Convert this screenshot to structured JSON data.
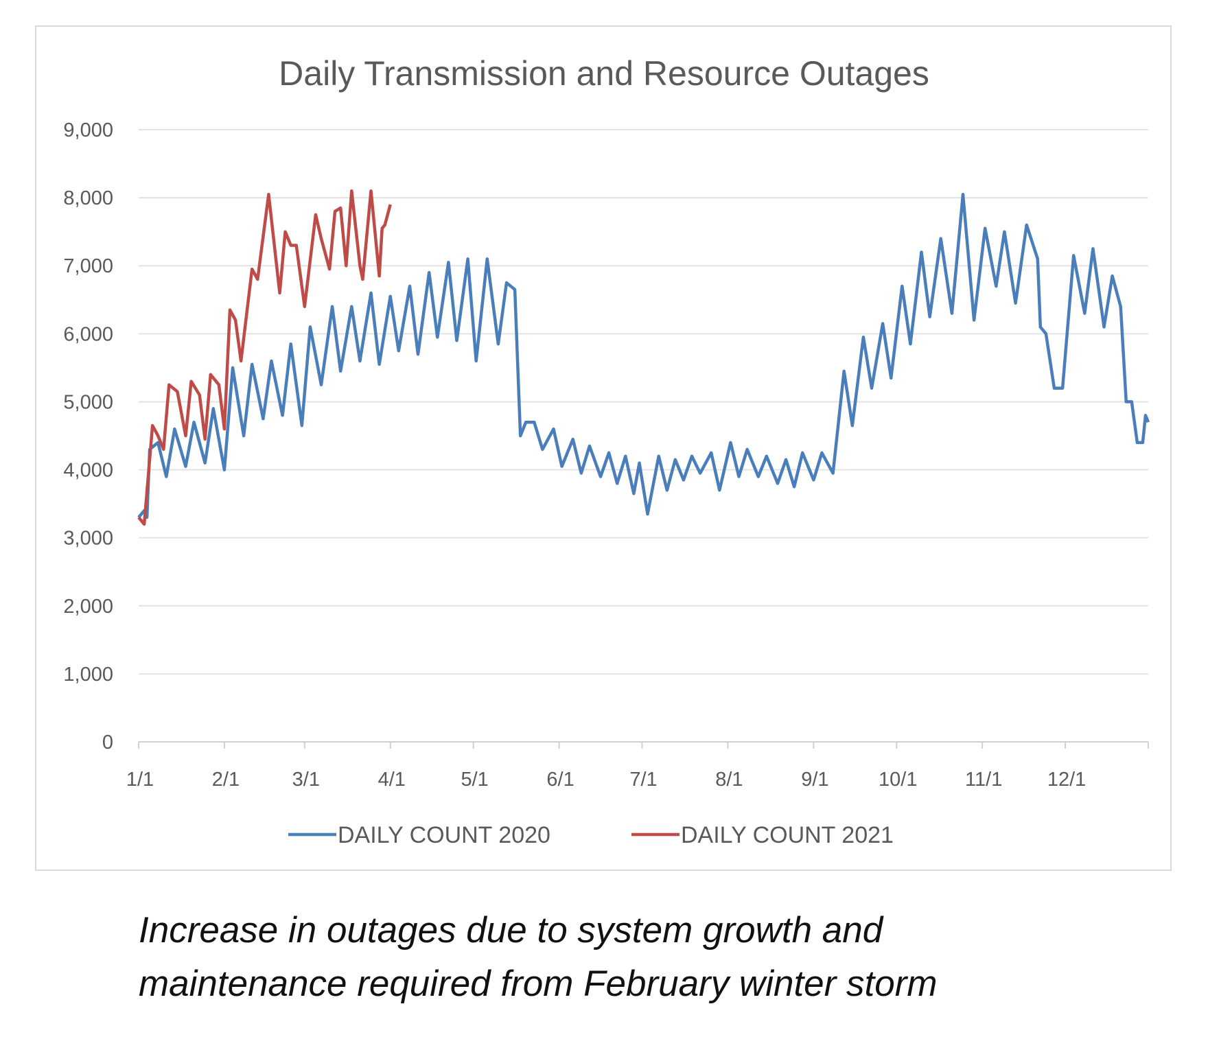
{
  "chart_data": {
    "type": "line",
    "title": "Daily Transmission and Resource Outages",
    "xlabel": "",
    "ylabel": "",
    "ylim": [
      0,
      9000
    ],
    "yticks": [
      "0",
      "1,000",
      "2,000",
      "3,000",
      "4,000",
      "5,000",
      "6,000",
      "7,000",
      "8,000",
      "9,000"
    ],
    "xticks": [
      "1/1",
      "2/1",
      "3/1",
      "4/1",
      "5/1",
      "6/1",
      "7/1",
      "8/1",
      "9/1",
      "10/1",
      "11/1",
      "12/1"
    ],
    "grid": true,
    "legend": "bottom",
    "series": [
      {
        "name": "DAILY COUNT 2020",
        "color": "#4a7ebb",
        "points": [
          [
            "1/1",
            3300
          ],
          [
            "1/3",
            3400
          ],
          [
            "1/4",
            3300
          ],
          [
            "1/5",
            4300
          ],
          [
            "1/8",
            4400
          ],
          [
            "1/11",
            3900
          ],
          [
            "1/14",
            4600
          ],
          [
            "1/18",
            4050
          ],
          [
            "1/21",
            4700
          ],
          [
            "1/25",
            4100
          ],
          [
            "1/28",
            4900
          ],
          [
            "2/1",
            4000
          ],
          [
            "2/4",
            5500
          ],
          [
            "2/8",
            4500
          ],
          [
            "2/11",
            5550
          ],
          [
            "2/15",
            4750
          ],
          [
            "2/18",
            5600
          ],
          [
            "2/22",
            4800
          ],
          [
            "2/25",
            5850
          ],
          [
            "2/29",
            4650
          ],
          [
            "3/3",
            6100
          ],
          [
            "3/7",
            5250
          ],
          [
            "3/11",
            6400
          ],
          [
            "3/14",
            5450
          ],
          [
            "3/18",
            6400
          ],
          [
            "3/21",
            5600
          ],
          [
            "3/25",
            6600
          ],
          [
            "3/28",
            5550
          ],
          [
            "4/1",
            6550
          ],
          [
            "4/4",
            5750
          ],
          [
            "4/8",
            6700
          ],
          [
            "4/11",
            5700
          ],
          [
            "4/15",
            6900
          ],
          [
            "4/18",
            5950
          ],
          [
            "4/22",
            7050
          ],
          [
            "4/25",
            5900
          ],
          [
            "4/29",
            7100
          ],
          [
            "5/2",
            5600
          ],
          [
            "5/6",
            7100
          ],
          [
            "5/10",
            5850
          ],
          [
            "5/13",
            6750
          ],
          [
            "5/16",
            6650
          ],
          [
            "5/18",
            4500
          ],
          [
            "5/20",
            4700
          ],
          [
            "5/23",
            4700
          ],
          [
            "5/26",
            4300
          ],
          [
            "5/30",
            4600
          ],
          [
            "6/2",
            4050
          ],
          [
            "6/6",
            4450
          ],
          [
            "6/9",
            3950
          ],
          [
            "6/12",
            4350
          ],
          [
            "6/16",
            3900
          ],
          [
            "6/19",
            4250
          ],
          [
            "6/22",
            3800
          ],
          [
            "6/25",
            4200
          ],
          [
            "6/28",
            3650
          ],
          [
            "6/30",
            4100
          ],
          [
            "7/3",
            3350
          ],
          [
            "7/7",
            4200
          ],
          [
            "7/10",
            3700
          ],
          [
            "7/13",
            4150
          ],
          [
            "7/16",
            3850
          ],
          [
            "7/19",
            4200
          ],
          [
            "7/22",
            3950
          ],
          [
            "7/26",
            4250
          ],
          [
            "7/29",
            3700
          ],
          [
            "8/2",
            4400
          ],
          [
            "8/5",
            3900
          ],
          [
            "8/8",
            4300
          ],
          [
            "8/12",
            3900
          ],
          [
            "8/15",
            4200
          ],
          [
            "8/19",
            3800
          ],
          [
            "8/22",
            4150
          ],
          [
            "8/25",
            3750
          ],
          [
            "8/28",
            4250
          ],
          [
            "9/1",
            3850
          ],
          [
            "9/4",
            4250
          ],
          [
            "9/8",
            3950
          ],
          [
            "9/12",
            5450
          ],
          [
            "9/15",
            4650
          ],
          [
            "9/19",
            5950
          ],
          [
            "9/22",
            5200
          ],
          [
            "9/26",
            6150
          ],
          [
            "9/29",
            5350
          ],
          [
            "10/3",
            6700
          ],
          [
            "10/6",
            5850
          ],
          [
            "10/10",
            7200
          ],
          [
            "10/13",
            6250
          ],
          [
            "10/17",
            7400
          ],
          [
            "10/21",
            6300
          ],
          [
            "10/25",
            8050
          ],
          [
            "10/29",
            6200
          ],
          [
            "11/2",
            7550
          ],
          [
            "11/6",
            6700
          ],
          [
            "11/9",
            7500
          ],
          [
            "11/13",
            6450
          ],
          [
            "11/17",
            7600
          ],
          [
            "11/21",
            7100
          ],
          [
            "11/22",
            6100
          ],
          [
            "11/24",
            6000
          ],
          [
            "11/27",
            5200
          ],
          [
            "11/30",
            5200
          ],
          [
            "12/4",
            7150
          ],
          [
            "12/8",
            6300
          ],
          [
            "12/11",
            7250
          ],
          [
            "12/15",
            6100
          ],
          [
            "12/18",
            6850
          ],
          [
            "12/21",
            6400
          ],
          [
            "12/23",
            5000
          ],
          [
            "12/25",
            5000
          ],
          [
            "12/27",
            4400
          ],
          [
            "12/29",
            4400
          ],
          [
            "12/30",
            4800
          ],
          [
            "12/31",
            4700
          ]
        ]
      },
      {
        "name": "DAILY COUNT 2021",
        "color": "#be4b48",
        "points": [
          [
            "1/1",
            3300
          ],
          [
            "1/3",
            3200
          ],
          [
            "1/6",
            4650
          ],
          [
            "1/8",
            4500
          ],
          [
            "1/10",
            4300
          ],
          [
            "1/12",
            5250
          ],
          [
            "1/15",
            5150
          ],
          [
            "1/18",
            4500
          ],
          [
            "1/20",
            5300
          ],
          [
            "1/23",
            5100
          ],
          [
            "1/25",
            4450
          ],
          [
            "1/27",
            5400
          ],
          [
            "1/30",
            5250
          ],
          [
            "2/1",
            4600
          ],
          [
            "2/3",
            6350
          ],
          [
            "2/5",
            6200
          ],
          [
            "2/7",
            5600
          ],
          [
            "2/11",
            6950
          ],
          [
            "2/13",
            6800
          ],
          [
            "2/17",
            8050
          ],
          [
            "2/21",
            6600
          ],
          [
            "2/23",
            7500
          ],
          [
            "2/25",
            7300
          ],
          [
            "2/27",
            7300
          ],
          [
            "3/1",
            6400
          ],
          [
            "3/5",
            7750
          ],
          [
            "3/7",
            7400
          ],
          [
            "3/10",
            6950
          ],
          [
            "3/12",
            7800
          ],
          [
            "3/14",
            7850
          ],
          [
            "3/16",
            7000
          ],
          [
            "3/18",
            8100
          ],
          [
            "3/21",
            7000
          ],
          [
            "3/22",
            6800
          ],
          [
            "3/25",
            8100
          ],
          [
            "3/28",
            6850
          ],
          [
            "3/29",
            7550
          ],
          [
            "3/30",
            7600
          ],
          [
            "4/1",
            7900
          ]
        ]
      }
    ]
  },
  "caption": {
    "line1": "Increase in outages due to system growth and",
    "line2": "maintenance required from February winter storm"
  }
}
